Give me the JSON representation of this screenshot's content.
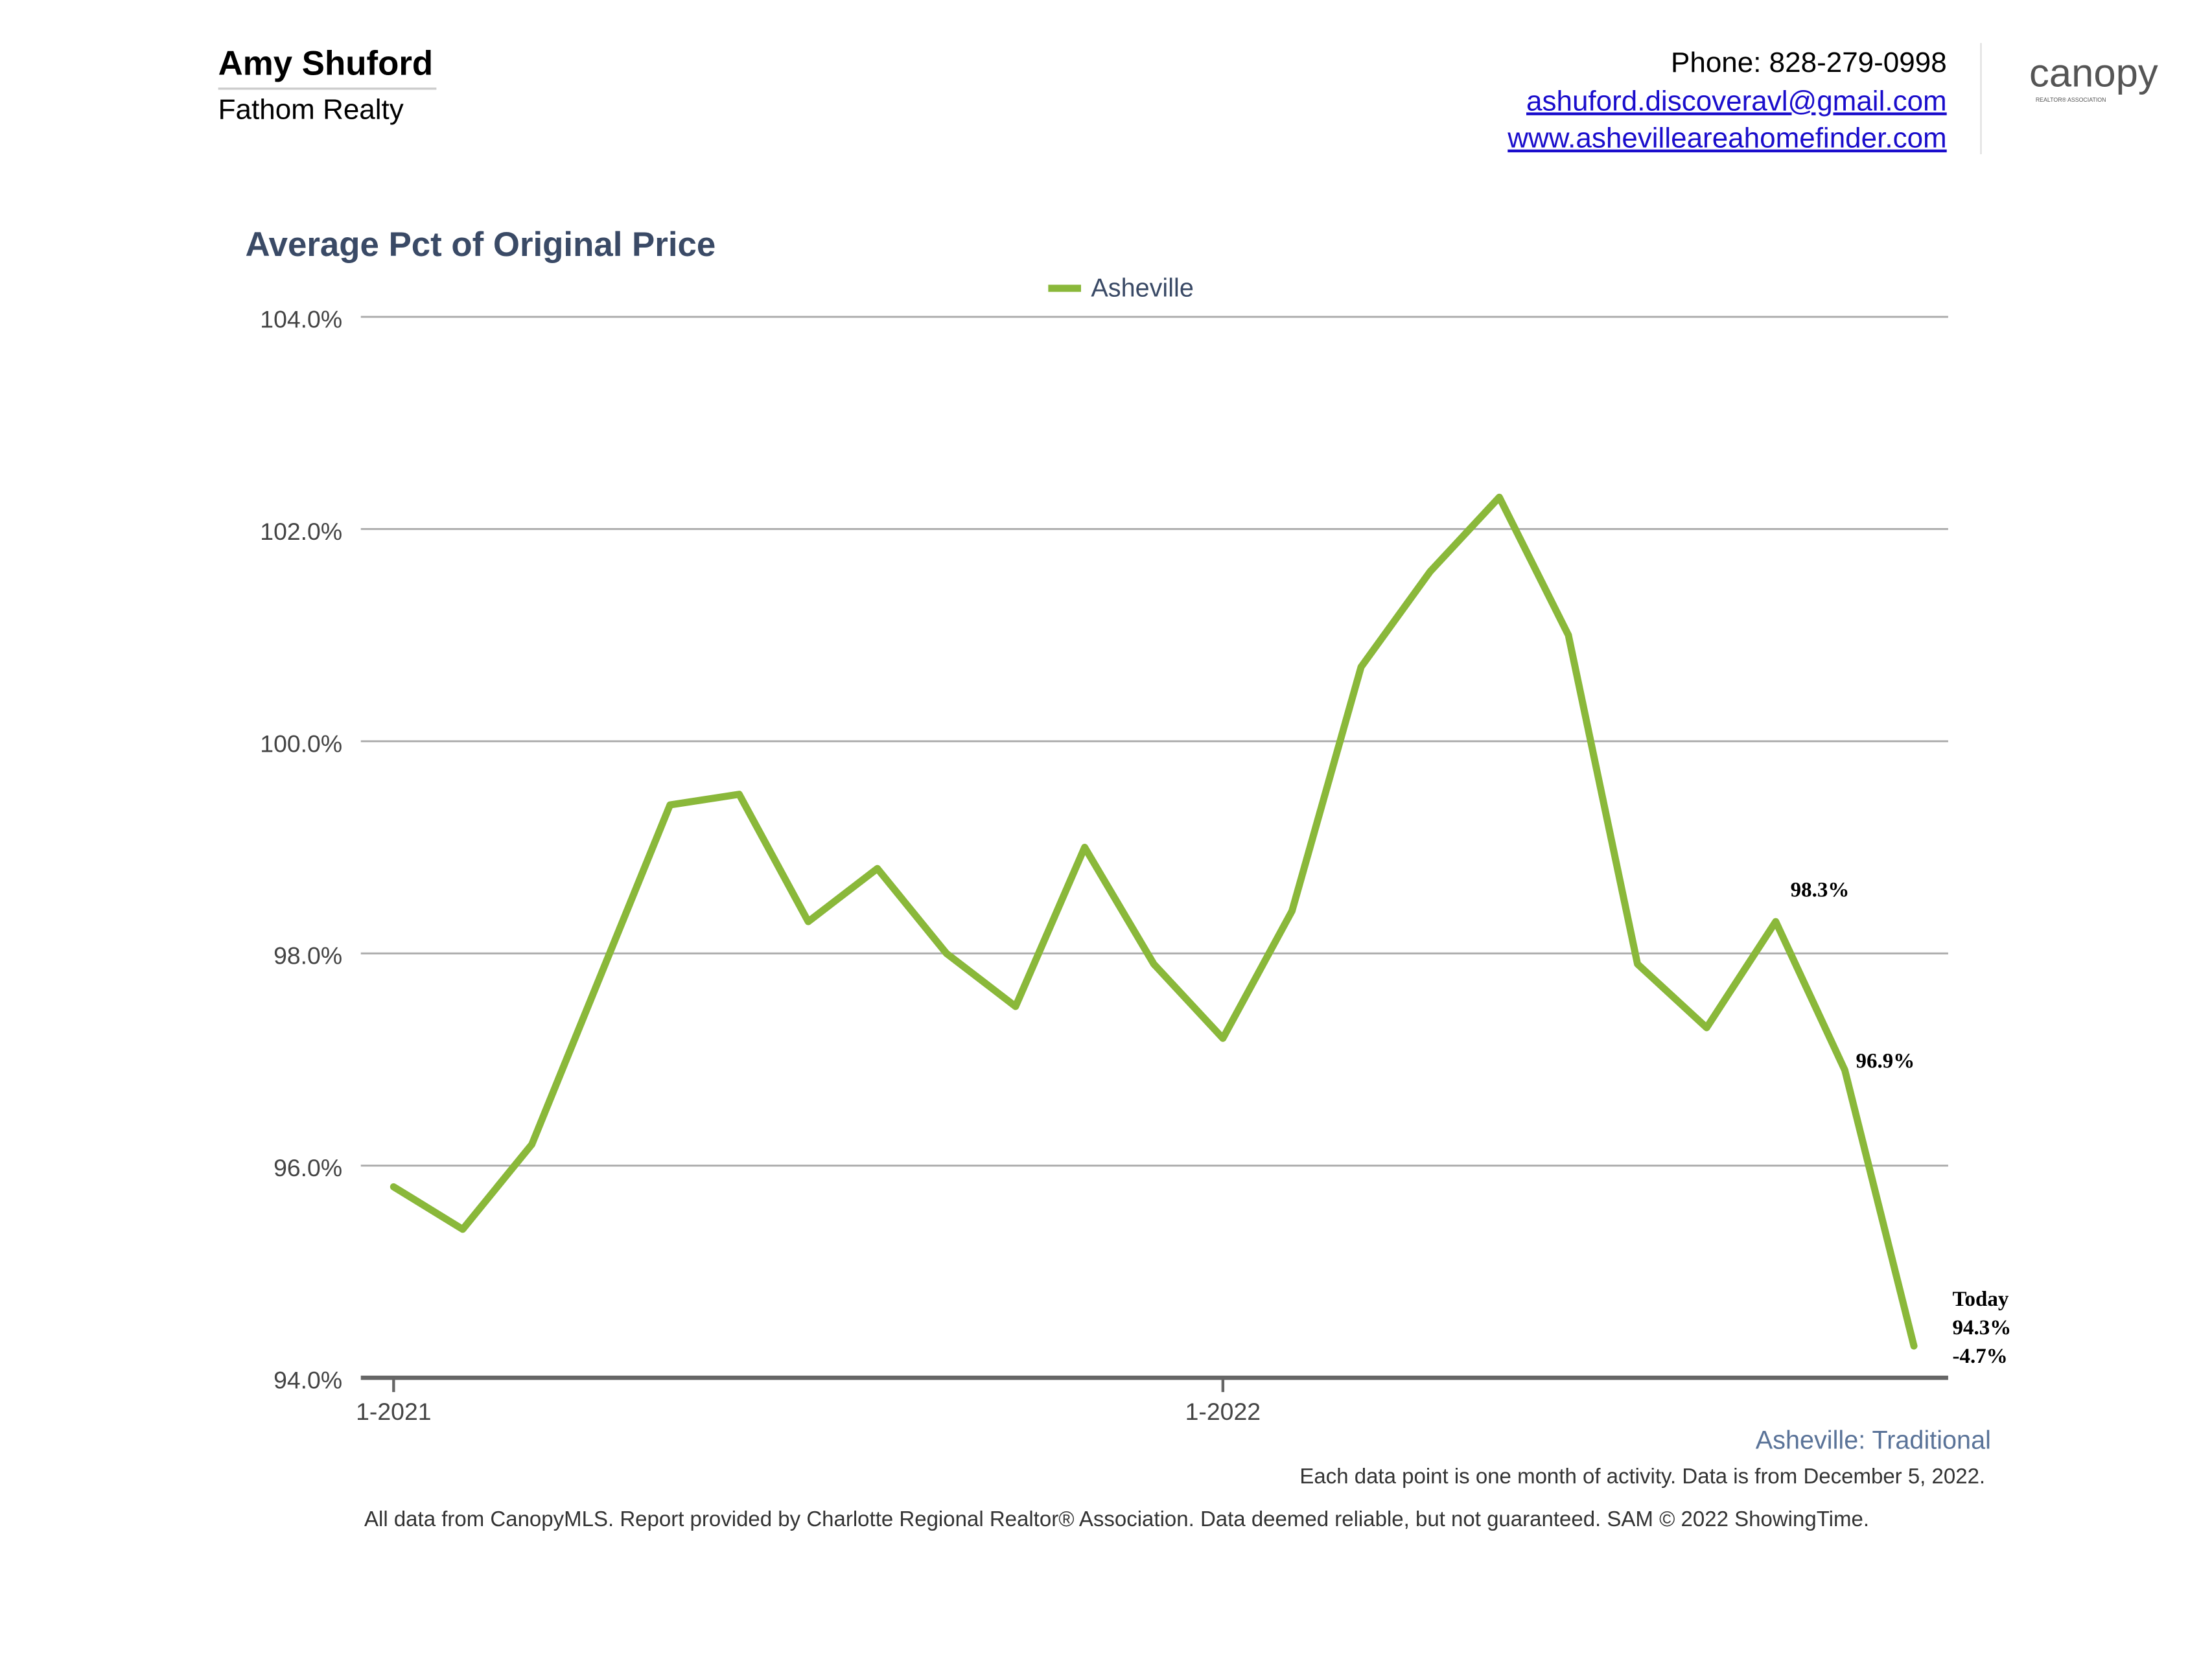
{
  "header": {
    "agent_name": "Amy Shuford",
    "company": "Fathom Realty",
    "phone": "Phone: 828-279-0998",
    "email": "ashuford.discoveravl@gmail.com",
    "website": "www.ashevilleareahomefinder.com",
    "logo": "canopy",
    "logo_sub": "REALTOR® ASSOCIATION"
  },
  "chart_data": {
    "type": "line",
    "title": "Average Pct of Original Price",
    "categories": [
      "1-2021",
      null,
      null,
      null,
      null,
      null,
      null,
      null,
      null,
      null,
      null,
      null,
      "1-2022",
      null,
      null,
      null,
      null,
      null,
      null,
      null,
      null,
      null,
      null
    ],
    "series": [
      {
        "name": "Asheville",
        "color": "#8ab83a",
        "values": [
          95.8,
          95.4,
          96.2,
          97.8,
          99.4,
          99.5,
          98.3,
          98.8,
          98.0,
          97.5,
          99.0,
          97.9,
          97.2,
          98.4,
          100.7,
          101.6,
          102.3,
          101.0,
          97.9,
          97.3,
          98.3,
          96.9,
          94.3
        ],
        "value_labels": [
          null,
          null,
          null,
          null,
          null,
          null,
          null,
          null,
          null,
          null,
          null,
          null,
          null,
          null,
          null,
          null,
          null,
          null,
          null,
          null,
          "98.3%",
          "96.9%",
          "94.3%"
        ]
      }
    ],
    "annotations": [
      "Today",
      "-4.7%"
    ],
    "ylim": [
      94,
      104
    ],
    "yticks": [
      {
        "value": 94,
        "label": "94.0%"
      },
      {
        "value": 96,
        "label": "96.0%"
      },
      {
        "value": 98,
        "label": "98.0%"
      },
      {
        "value": 100,
        "label": "100.0%"
      },
      {
        "value": 102,
        "label": "102.0%"
      },
      {
        "value": 104,
        "label": "104.0%"
      }
    ],
    "grid": true,
    "legend": "top"
  },
  "footer": {
    "segment": "Asheville: Traditional",
    "note": "Each data point is one month of activity. Data is from December 5, 2022.",
    "disclaimer": "All data from CanopyMLS. Report provided by Charlotte Regional Realtor® Association. Data deemed reliable, but not guaranteed. SAM © 2022 ShowingTime."
  }
}
